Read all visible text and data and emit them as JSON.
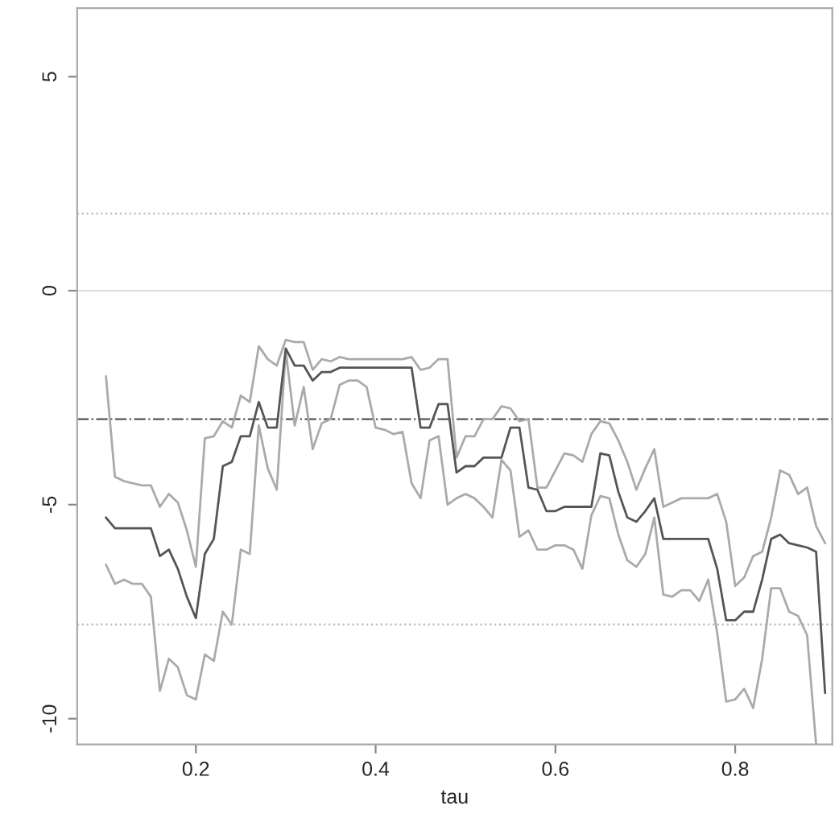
{
  "chart_data": {
    "type": "line",
    "xlabel": "tau",
    "x": [
      0.1,
      0.11,
      0.12,
      0.13,
      0.14,
      0.15,
      0.16,
      0.17,
      0.18,
      0.19,
      0.2,
      0.21,
      0.22,
      0.23,
      0.24,
      0.25,
      0.26,
      0.27,
      0.28,
      0.29,
      0.3,
      0.31,
      0.32,
      0.33,
      0.34,
      0.35,
      0.36,
      0.37,
      0.38,
      0.39,
      0.4,
      0.41,
      0.42,
      0.43,
      0.44,
      0.45,
      0.46,
      0.47,
      0.48,
      0.49,
      0.5,
      0.51,
      0.52,
      0.53,
      0.54,
      0.55,
      0.56,
      0.57,
      0.58,
      0.59,
      0.6,
      0.61,
      0.62,
      0.63,
      0.64,
      0.65,
      0.66,
      0.67,
      0.68,
      0.69,
      0.7,
      0.71,
      0.72,
      0.73,
      0.74,
      0.75,
      0.76,
      0.77,
      0.78,
      0.79,
      0.8,
      0.81,
      0.82,
      0.83,
      0.84,
      0.85,
      0.86,
      0.87,
      0.88,
      0.89,
      0.9
    ],
    "series": [
      {
        "color": "#aaaaaa",
        "values": [
          -2.0,
          -4.35,
          -4.45,
          -4.5,
          -4.55,
          -4.55,
          -5.05,
          -4.75,
          -4.95,
          -5.6,
          -6.45,
          -3.45,
          -3.4,
          -3.05,
          -3.2,
          -2.45,
          -2.6,
          -1.3,
          -1.6,
          -1.75,
          -1.15,
          -1.2,
          -1.2,
          -1.85,
          -1.6,
          -1.65,
          -1.55,
          -1.6,
          -1.6,
          -1.6,
          -1.6,
          -1.6,
          -1.6,
          -1.6,
          -1.55,
          -1.85,
          -1.8,
          -1.6,
          -1.6,
          -3.9,
          -3.4,
          -3.4,
          -3.0,
          -3.0,
          -2.7,
          -2.75,
          -3.05,
          -3.0,
          -4.6,
          -4.6,
          -4.2,
          -3.8,
          -3.85,
          -4.0,
          -3.35,
          -3.05,
          -3.1,
          -3.5,
          -4.0,
          -4.65,
          -4.15,
          -3.7,
          -5.05,
          -4.95,
          -4.85,
          -4.85,
          -4.85,
          -4.85,
          -4.75,
          -5.4,
          -6.9,
          -6.7,
          -6.2,
          -6.1,
          -5.3,
          -4.2,
          -4.3,
          -4.75,
          -4.6,
          -5.5,
          -5.9
        ]
      },
      {
        "color": "#aaaaaa",
        "values": [
          -6.4,
          -6.85,
          -6.75,
          -6.85,
          -6.85,
          -7.15,
          -9.35,
          -8.6,
          -8.8,
          -9.45,
          -9.55,
          -8.5,
          -8.65,
          -7.5,
          -7.8,
          -6.05,
          -6.15,
          -3.15,
          -4.15,
          -4.65,
          -1.4,
          -3.15,
          -2.25,
          -3.7,
          -3.1,
          -3.0,
          -2.2,
          -2.1,
          -2.1,
          -2.25,
          -3.2,
          -3.25,
          -3.35,
          -3.3,
          -4.5,
          -4.85,
          -3.5,
          -3.4,
          -5.0,
          -4.85,
          -4.75,
          -4.85,
          -5.05,
          -5.3,
          -3.95,
          -4.2,
          -5.75,
          -5.6,
          -6.05,
          -6.05,
          -5.95,
          -5.95,
          -6.05,
          -6.5,
          -5.25,
          -4.8,
          -4.85,
          -5.7,
          -6.3,
          -6.45,
          -6.15,
          -5.3,
          -7.1,
          -7.15,
          -7.0,
          -7.0,
          -7.25,
          -6.75,
          -8.0,
          -9.6,
          -9.55,
          -9.3,
          -9.75,
          -8.6,
          -6.95,
          -6.95,
          -7.5,
          -7.6,
          -8.05,
          -10.6,
          null
        ]
      },
      {
        "color": "#555555",
        "values": [
          -5.3,
          -5.55,
          -5.55,
          -5.55,
          -5.55,
          -5.55,
          -6.2,
          -6.05,
          -6.5,
          -7.15,
          -7.65,
          -6.15,
          -5.8,
          -4.1,
          -4.0,
          -3.4,
          -3.4,
          -2.6,
          -3.2,
          -3.2,
          -1.35,
          -1.75,
          -1.75,
          -2.1,
          -1.9,
          -1.9,
          -1.8,
          -1.8,
          -1.8,
          -1.8,
          -1.8,
          -1.8,
          -1.8,
          -1.8,
          -1.8,
          -3.2,
          -3.2,
          -2.65,
          -2.65,
          -4.25,
          -4.1,
          -4.1,
          -3.9,
          -3.9,
          -3.9,
          -3.2,
          -3.2,
          -4.6,
          -4.65,
          -5.15,
          -5.15,
          -5.05,
          -5.05,
          -5.05,
          -5.05,
          -3.8,
          -3.85,
          -4.7,
          -5.3,
          -5.4,
          -5.15,
          -4.85,
          -5.8,
          -5.8,
          -5.8,
          -5.8,
          -5.8,
          -5.8,
          -6.5,
          -7.7,
          -7.7,
          -7.5,
          -7.5,
          -6.75,
          -5.8,
          -5.7,
          -5.9,
          -5.95,
          -6.0,
          -6.1,
          -9.4
        ]
      }
    ],
    "ref_lines": [
      {
        "axis": "y",
        "value": 1.8,
        "color": "#bbbbbb",
        "line_style": "dotted"
      },
      {
        "axis": "y",
        "value": 0,
        "color": "#dddddd",
        "line_style": "solid"
      },
      {
        "axis": "y",
        "value": -3,
        "color": "#555555",
        "line_style": "dashed"
      },
      {
        "axis": "y",
        "value": -7.8,
        "color": "#bbbbbb",
        "line_style": "dotted"
      }
    ],
    "xlim": [
      0.068,
      0.908
    ],
    "ylim": [
      -10.6,
      6.6
    ],
    "xticks": [
      0.2,
      0.4,
      0.6,
      0.8
    ],
    "yticks": [
      -10,
      -5,
      0,
      5
    ],
    "grid": false,
    "legend": false
  }
}
